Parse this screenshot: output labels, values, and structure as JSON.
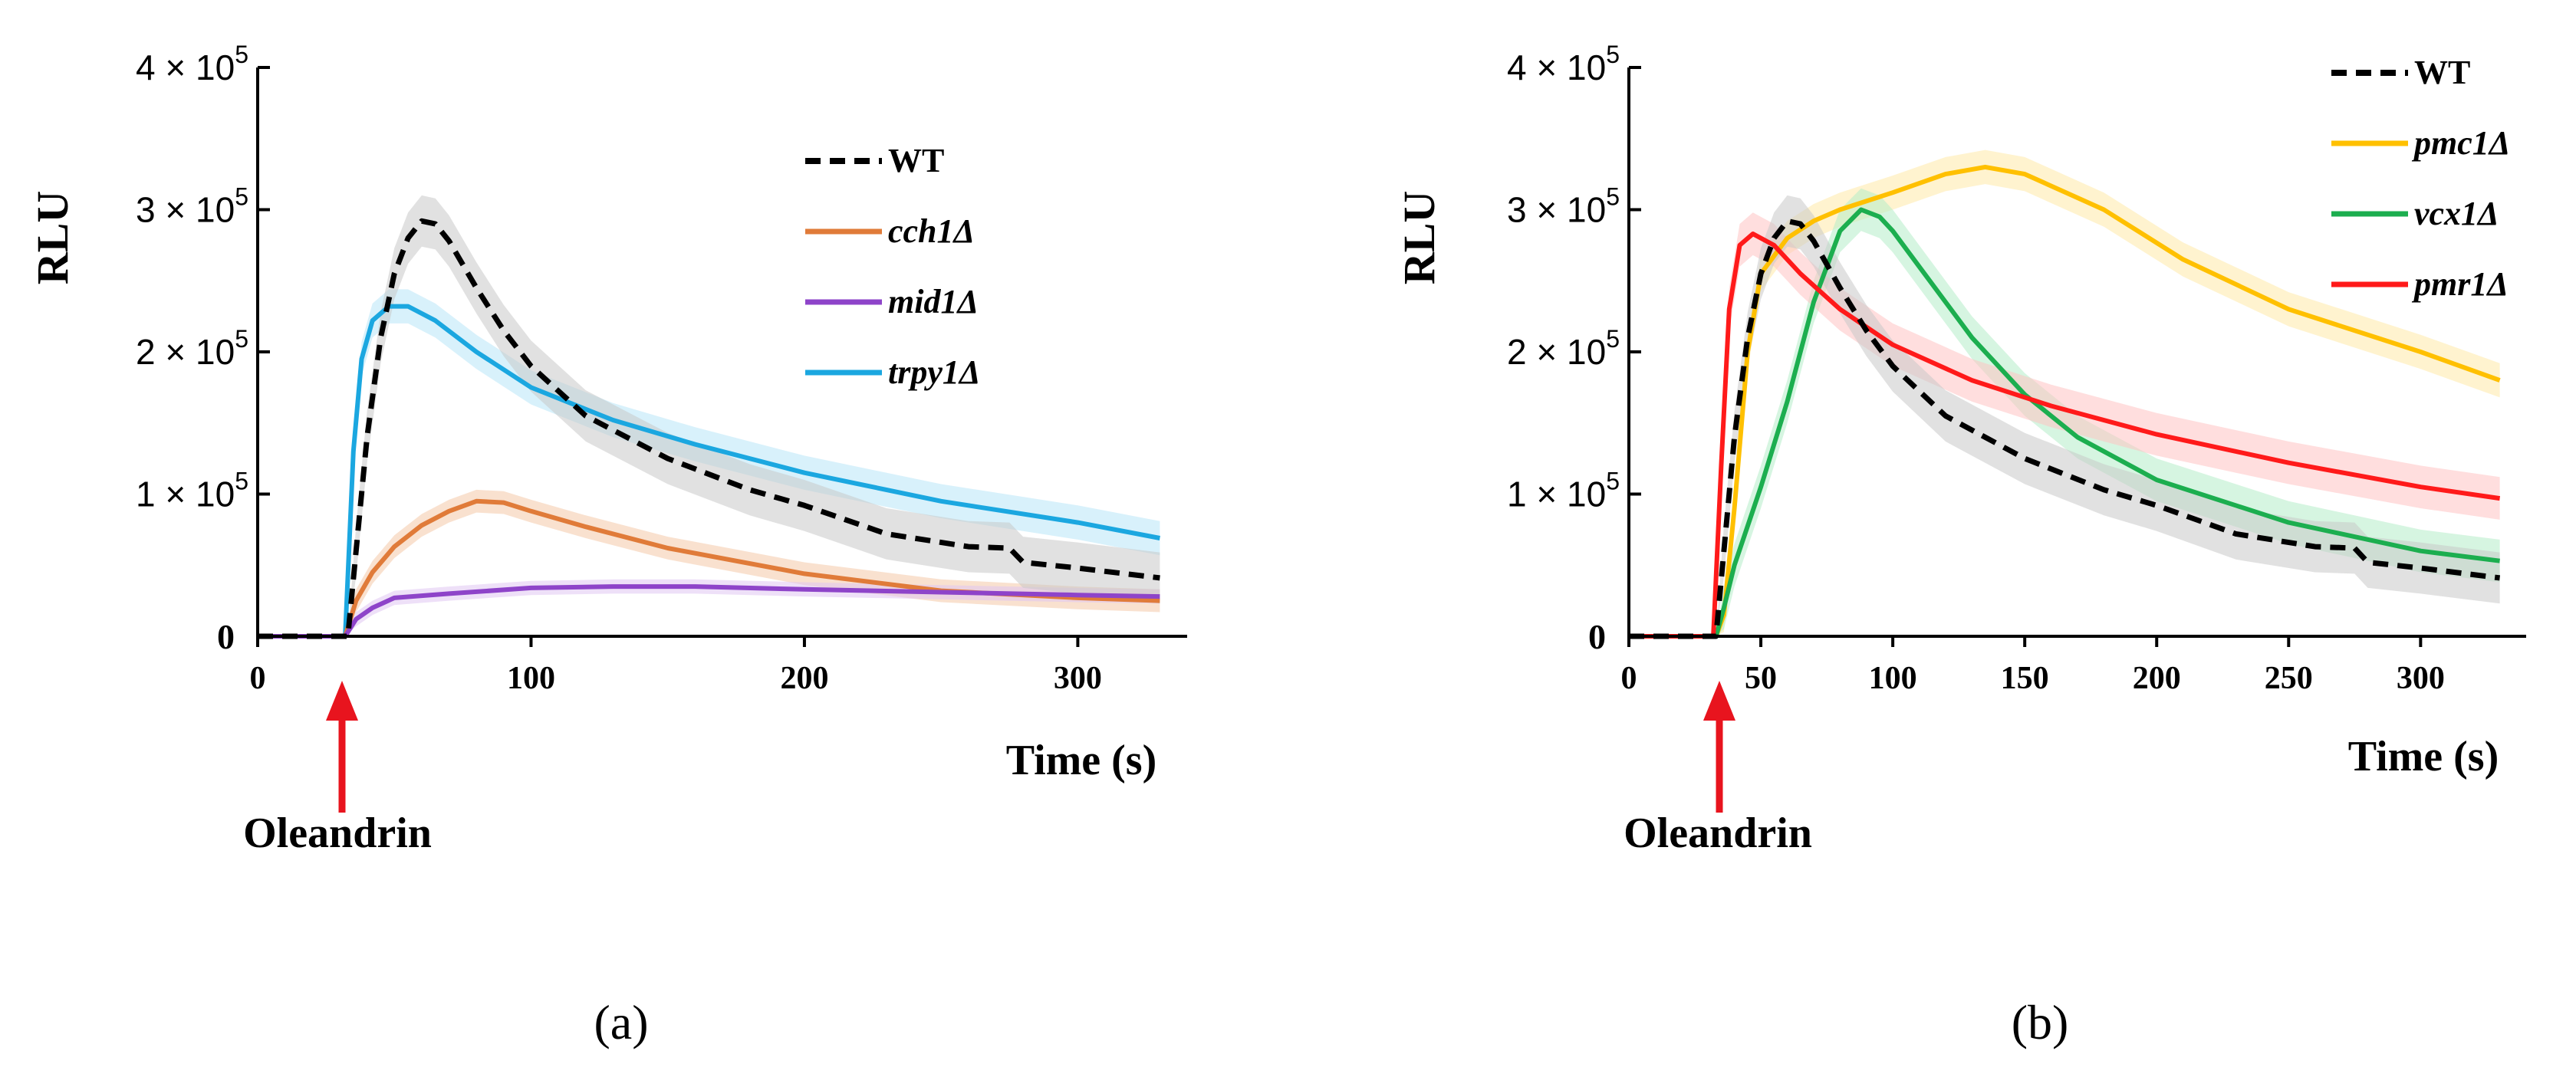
{
  "colors": {
    "wt": "#000000",
    "cch1": "#e07b39",
    "mid1": "#8e44c9",
    "trpy1": "#1ba7e0",
    "pmc1": "#ffc000",
    "vcx1": "#1cae4f",
    "pmr1": "#ff1a1a",
    "arrow": "#e8141e",
    "wt_band": "#c8c8c8",
    "cch1_band": "#f4c8a8",
    "mid1_band": "#e0c6f2",
    "trpy1_band": "#b8e6f7",
    "pmc1_band": "#ffe9a8",
    "vcx1_band": "#b5ecc8",
    "pmr1_band": "#ffc2c2"
  },
  "stimulus_label": "Oleandrin",
  "chart_data": [
    {
      "panel": "a",
      "caption": "(a)",
      "type": "line",
      "xlabel": "Time (s)",
      "ylabel": "RLU",
      "xlim": [
        0,
        340
      ],
      "ylim": [
        0,
        400000
      ],
      "xticks": [
        0,
        100,
        200,
        300
      ],
      "xtick_labels": [
        "0",
        "100",
        "200",
        "300"
      ],
      "yticks": [
        0,
        100000,
        200000,
        300000,
        400000
      ],
      "ytick_labels": [
        "0",
        "1 × 10",
        "2 × 10",
        "3 × 10",
        "4 × 10"
      ],
      "ytick_exponents": [
        "",
        "5",
        "5",
        "5",
        "5"
      ],
      "stimulus_time": 32,
      "legend_position": "top-right",
      "series": [
        {
          "key": "trpy1",
          "name": "trpy1Δ",
          "style": "solid",
          "error_band": 12000,
          "x": [
            0,
            30,
            32,
            35,
            38,
            42,
            48,
            55,
            65,
            80,
            100,
            130,
            160,
            200,
            250,
            300,
            330
          ],
          "y": [
            0,
            0,
            0,
            130000,
            195000,
            222000,
            232000,
            232000,
            222000,
            200000,
            175000,
            152000,
            135000,
            115000,
            95000,
            80000,
            69000
          ]
        },
        {
          "key": "cch1",
          "name": "cch1Δ",
          "style": "solid",
          "error_band": 8000,
          "x": [
            0,
            30,
            32,
            36,
            42,
            50,
            60,
            70,
            80,
            90,
            100,
            120,
            150,
            200,
            250,
            300,
            330
          ],
          "y": [
            0,
            0,
            0,
            25000,
            45000,
            63000,
            78000,
            88000,
            95000,
            94000,
            88000,
            77000,
            62000,
            44000,
            32000,
            27000,
            25000
          ]
        },
        {
          "key": "mid1",
          "name": "mid1Δ",
          "style": "solid",
          "error_band": 5000,
          "x": [
            0,
            30,
            32,
            36,
            42,
            50,
            70,
            100,
            130,
            160,
            200,
            250,
            300,
            330
          ],
          "y": [
            0,
            0,
            0,
            12000,
            20000,
            27000,
            30000,
            34000,
            35000,
            35000,
            33000,
            31000,
            29000,
            28000
          ]
        },
        {
          "key": "wt",
          "name": "WT",
          "style": "dashed",
          "error_band": 18000,
          "x": [
            0,
            30,
            33,
            36,
            40,
            45,
            50,
            55,
            60,
            65,
            70,
            80,
            90,
            100,
            120,
            150,
            180,
            200,
            230,
            260,
            275,
            280,
            300,
            330
          ],
          "y": [
            0,
            0,
            0,
            60000,
            140000,
            210000,
            255000,
            280000,
            292000,
            290000,
            278000,
            245000,
            215000,
            190000,
            155000,
            125000,
            103000,
            92000,
            72000,
            63000,
            62000,
            52000,
            48000,
            41000
          ]
        }
      ],
      "legend_order": [
        "wt",
        "cch1",
        "mid1",
        "trpy1"
      ]
    },
    {
      "panel": "b",
      "caption": "(b)",
      "type": "line",
      "xlabel": "Time (s)",
      "ylabel": "RLU",
      "xlim": [
        0,
        340
      ],
      "ylim": [
        0,
        400000
      ],
      "xticks": [
        0,
        50,
        100,
        150,
        200,
        250,
        300
      ],
      "xtick_labels": [
        "0",
        "50",
        "100",
        "150",
        "200",
        "250",
        "300"
      ],
      "yticks": [
        0,
        100000,
        200000,
        300000,
        400000
      ],
      "ytick_labels": [
        "0",
        "1 × 10",
        "2 × 10",
        "3 × 10",
        "4 × 10"
      ],
      "ytick_exponents": [
        "",
        "5",
        "5",
        "5",
        "5"
      ],
      "stimulus_time": 32,
      "legend_position": "top-right",
      "series": [
        {
          "key": "pmc1",
          "name": "pmc1Δ",
          "style": "solid",
          "error_band": 12000,
          "x": [
            0,
            33,
            36,
            40,
            45,
            50,
            60,
            70,
            80,
            100,
            120,
            135,
            150,
            180,
            210,
            250,
            300,
            330
          ],
          "y": [
            0,
            0,
            15000,
            90000,
            200000,
            255000,
            280000,
            292000,
            300000,
            312000,
            325000,
            330000,
            325000,
            300000,
            265000,
            230000,
            200000,
            180000
          ]
        },
        {
          "key": "vcx1",
          "name": "vcx1Δ",
          "style": "solid",
          "error_band": 15000,
          "x": [
            0,
            33,
            36,
            40,
            50,
            60,
            70,
            80,
            88,
            95,
            100,
            110,
            130,
            150,
            170,
            200,
            250,
            300,
            330
          ],
          "y": [
            0,
            0,
            20000,
            50000,
            105000,
            165000,
            235000,
            285000,
            300000,
            295000,
            285000,
            260000,
            210000,
            170000,
            140000,
            110000,
            80000,
            60000,
            53000
          ]
        },
        {
          "key": "pmr1",
          "name": "pmr1Δ",
          "style": "solid",
          "error_band": 15000,
          "x": [
            0,
            30,
            32,
            35,
            38,
            42,
            47,
            55,
            65,
            80,
            100,
            130,
            160,
            200,
            250,
            300,
            330
          ],
          "y": [
            0,
            0,
            0,
            120000,
            230000,
            275000,
            283000,
            275000,
            255000,
            230000,
            205000,
            180000,
            162000,
            142000,
            122000,
            105000,
            97000
          ]
        },
        {
          "key": "wt",
          "name": "WT",
          "style": "dashed",
          "error_band": 18000,
          "x": [
            0,
            30,
            33,
            36,
            40,
            45,
            50,
            55,
            60,
            65,
            70,
            80,
            90,
            100,
            120,
            150,
            180,
            200,
            230,
            260,
            275,
            280,
            300,
            330
          ],
          "y": [
            0,
            0,
            0,
            60000,
            140000,
            210000,
            255000,
            280000,
            292000,
            290000,
            278000,
            245000,
            215000,
            190000,
            155000,
            125000,
            103000,
            92000,
            72000,
            63000,
            62000,
            52000,
            48000,
            41000
          ]
        }
      ],
      "legend_order": [
        "wt",
        "pmc1",
        "vcx1",
        "pmr1"
      ]
    }
  ]
}
